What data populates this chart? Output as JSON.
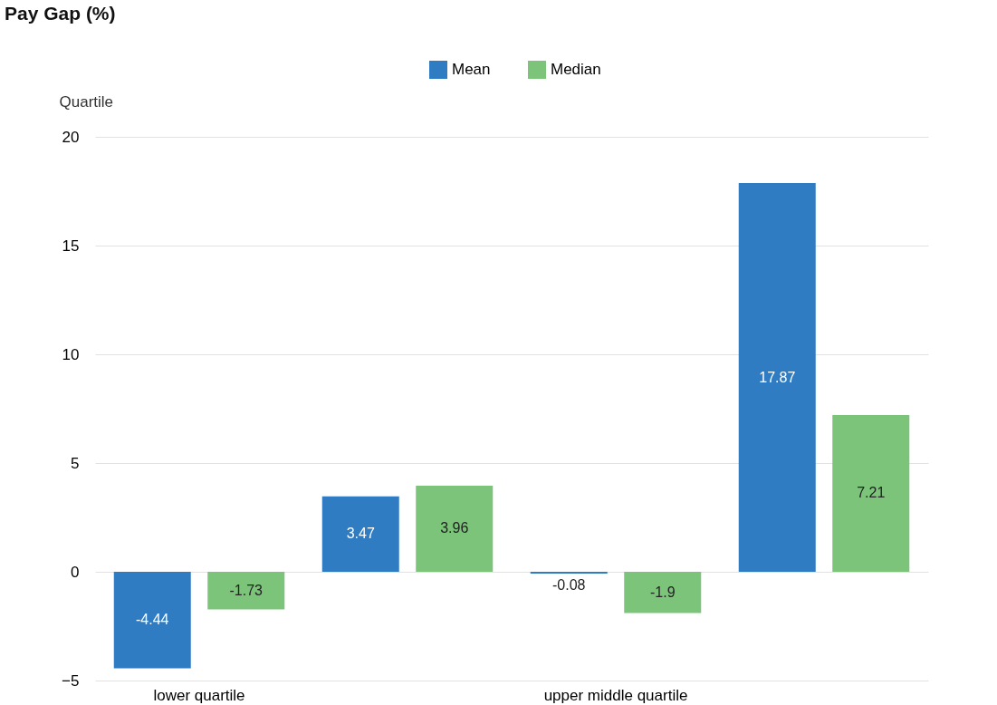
{
  "chart_data": {
    "type": "bar",
    "title": "Pay Gap (%)",
    "ylabel": "Quartile",
    "categories": [
      "lower quartile",
      null,
      "upper middle quartile",
      null
    ],
    "series": [
      {
        "name": "Mean",
        "color": "#2f7cc3",
        "values": [
          -4.44,
          3.47,
          -0.08,
          17.87
        ]
      },
      {
        "name": "Median",
        "color": "#7cc47a",
        "values": [
          -1.73,
          3.96,
          -1.9,
          7.21
        ]
      }
    ],
    "ylim": [
      -5,
      20
    ],
    "yticks": [
      -5,
      0,
      5,
      10,
      15,
      20
    ],
    "grid": "y",
    "legend": "top",
    "data_labels": true
  }
}
